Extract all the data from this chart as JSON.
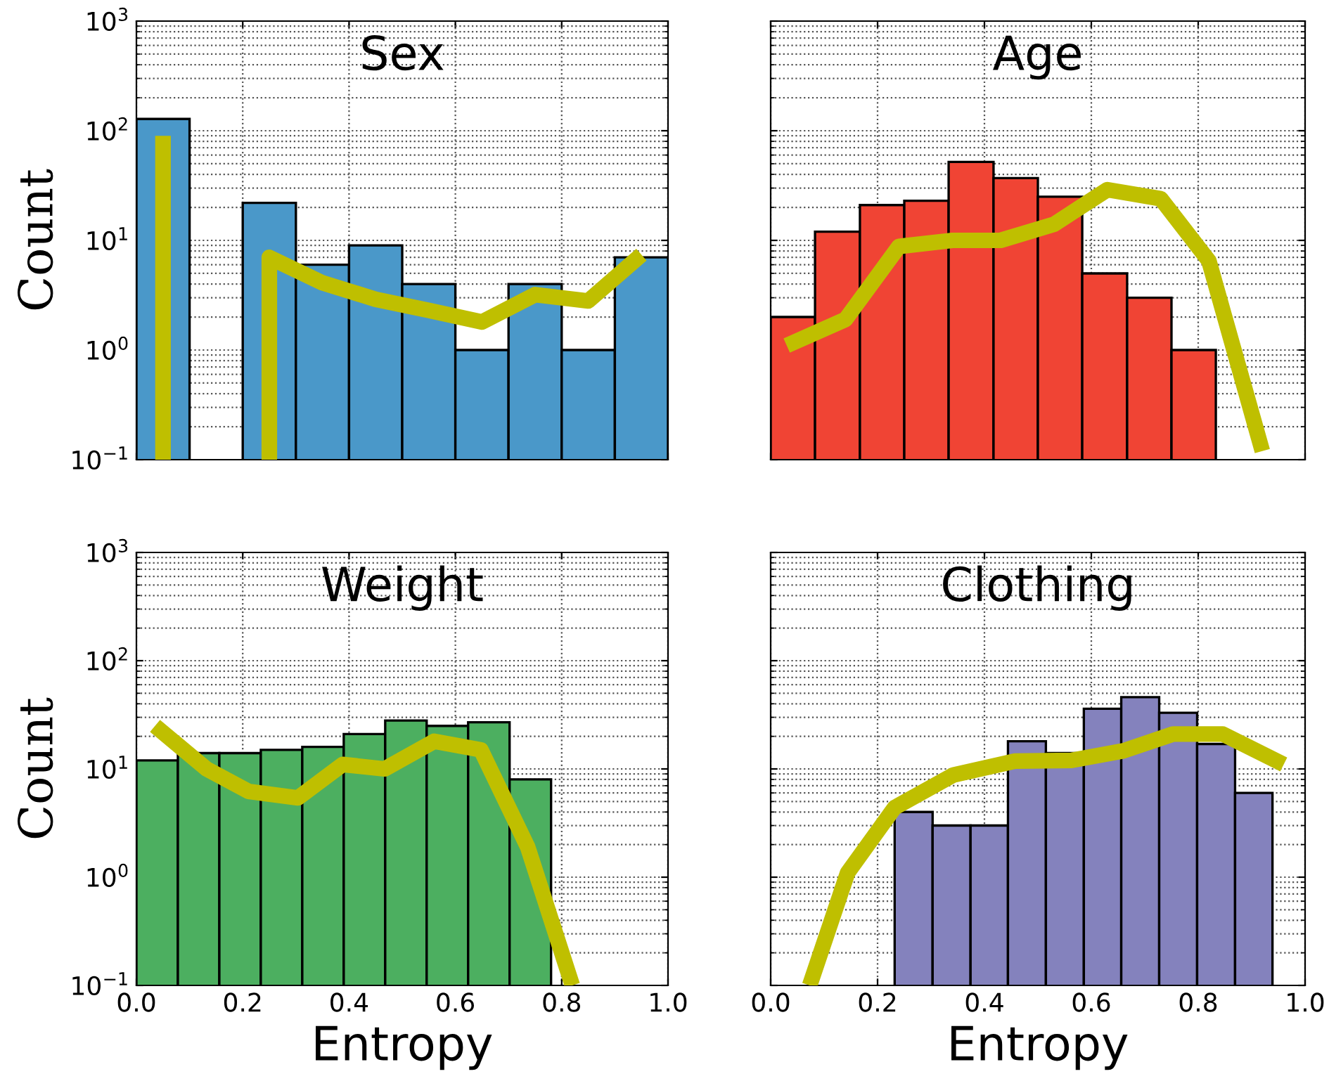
{
  "chart_data": [
    {
      "type": "histogram",
      "title": "Sex",
      "ylabel": "Count",
      "log": "y",
      "xlim": [
        0.0,
        1.0
      ],
      "ylim": [
        0.1,
        1000
      ],
      "xticks": [
        {
          "value": 0.0,
          "label": null
        },
        {
          "value": 0.2,
          "label": null
        },
        {
          "value": 0.4,
          "label": null
        },
        {
          "value": 0.6,
          "label": null
        },
        {
          "value": 0.8,
          "label": null
        },
        {
          "value": 1.0,
          "label": null
        }
      ],
      "yticks": [
        {
          "value": 0.1,
          "label": "10$^{−1}$"
        },
        {
          "value": 1,
          "label": "10$^{0}$"
        },
        {
          "value": 10,
          "label": "10$^{1}$"
        },
        {
          "value": 100,
          "label": "10$^{2}$"
        },
        {
          "value": 1000,
          "label": "10$^{3}$"
        }
      ],
      "grid": true,
      "tick_labels": "y",
      "line_style": "solid",
      "series": [
        {
          "type": "histogram",
          "color": "#4a98c9",
          "bins": [
            0.0,
            0.1,
            0.2,
            0.3,
            0.4,
            0.5,
            0.6,
            0.7,
            0.8,
            0.9,
            1.0
          ],
          "values": [
            128,
            null,
            22,
            6,
            9,
            4,
            1,
            4,
            1,
            7
          ]
        },
        {
          "type": "line",
          "color": "#bfbf00",
          "x": [
            0.05,
            0.05,
            0.15,
            0.25,
            0.25,
            0.35,
            0.45,
            0.55,
            0.65,
            0.75,
            0.85,
            0.95
          ],
          "values": [
            0.1,
            90,
            null,
            0.1,
            7,
            4.1,
            2.9,
            2.3,
            1.8,
            3.2,
            2.8,
            7.4
          ]
        }
      ]
    },
    {
      "type": "histogram",
      "title": "Age",
      "log": "y",
      "xlim": [
        0.0,
        1.0
      ],
      "ylim": [
        0.1,
        1000
      ],
      "xticks": [
        {
          "value": 0.0,
          "label": null
        },
        {
          "value": 0.2,
          "label": null
        },
        {
          "value": 0.4,
          "label": null
        },
        {
          "value": 0.6,
          "label": null
        },
        {
          "value": 0.8,
          "label": null
        },
        {
          "value": 1.0,
          "label": null
        }
      ],
      "yticks": [
        {
          "value": 0.1,
          "label": null
        },
        {
          "value": 1,
          "label": null
        },
        {
          "value": 10,
          "label": null
        },
        {
          "value": 100,
          "label": null
        },
        {
          "value": 1000,
          "label": null
        }
      ],
      "grid": true,
      "tick_labels": false,
      "line_style": "solid",
      "series": [
        {
          "type": "histogram",
          "color": "#f04434",
          "bins": [
            0.0,
            0.083,
            0.167,
            0.25,
            0.333,
            0.417,
            0.5,
            0.583,
            0.667,
            0.75,
            0.833
          ],
          "values": [
            2,
            12,
            21,
            23,
            52,
            37,
            25,
            5,
            3,
            1
          ]
        },
        {
          "type": "line",
          "color": "#bfbf00",
          "x": [
            0.03,
            0.14,
            0.24,
            0.34,
            0.43,
            0.53,
            0.63,
            0.73,
            0.82,
            0.92
          ],
          "values": [
            1.1,
            1.9,
            8.8,
            10,
            10,
            14,
            29,
            24,
            6.5,
            0.12
          ]
        }
      ]
    },
    {
      "type": "histogram",
      "title": "Weight",
      "xlabel": "Entropy",
      "ylabel": "Count",
      "log": "y",
      "xlim": [
        0.0,
        1.0
      ],
      "ylim": [
        0.1,
        1000
      ],
      "xticks": [
        {
          "value": 0.0,
          "label": "0.0"
        },
        {
          "value": 0.2,
          "label": "0.2"
        },
        {
          "value": 0.4,
          "label": "0.4"
        },
        {
          "value": 0.6,
          "label": "0.6"
        },
        {
          "value": 0.8,
          "label": "0.8"
        },
        {
          "value": 1.0,
          "label": "1.0"
        }
      ],
      "yticks": [
        {
          "value": 0.1,
          "label": "10$^{−1}$"
        },
        {
          "value": 1,
          "label": "10$^{0}$"
        },
        {
          "value": 10,
          "label": "10$^{1}$"
        },
        {
          "value": 100,
          "label": "10$^{2}$"
        },
        {
          "value": 1000,
          "label": "10$^{3}$"
        }
      ],
      "grid": true,
      "line_style": "solid",
      "series": [
        {
          "type": "histogram",
          "color": "#4caf60",
          "bins": [
            0.0,
            0.078,
            0.156,
            0.234,
            0.312,
            0.39,
            0.468,
            0.546,
            0.624,
            0.702,
            0.78
          ],
          "values": [
            12,
            14,
            14,
            15,
            16,
            21,
            28,
            25,
            27,
            8
          ]
        },
        {
          "type": "line",
          "color": "#bfbf00",
          "x": [
            0.035,
            0.132,
            0.211,
            0.304,
            0.388,
            0.467,
            0.56,
            0.648,
            0.736,
            0.82
          ],
          "values": [
            25,
            10,
            6.2,
            5.4,
            11,
            10,
            18,
            15,
            1.9,
            0.1
          ]
        }
      ]
    },
    {
      "type": "histogram",
      "title": "Clothing",
      "xlabel": "Entropy",
      "log": "y",
      "xlim": [
        0.0,
        1.0
      ],
      "ylim": [
        0.1,
        1000
      ],
      "xticks": [
        {
          "value": 0.0,
          "label": "0.0"
        },
        {
          "value": 0.2,
          "label": "0.2"
        },
        {
          "value": 0.4,
          "label": "0.4"
        },
        {
          "value": 0.6,
          "label": "0.6"
        },
        {
          "value": 0.8,
          "label": "0.8"
        },
        {
          "value": 1.0,
          "label": "1.0"
        }
      ],
      "yticks": [
        {
          "value": 0.1,
          "label": null
        },
        {
          "value": 1,
          "label": null
        },
        {
          "value": 10,
          "label": null
        },
        {
          "value": 100,
          "label": null
        },
        {
          "value": 1000,
          "label": null
        }
      ],
      "grid": true,
      "tick_labels": "x",
      "line_style": "solid",
      "series": [
        {
          "type": "histogram",
          "color": "#8482bd",
          "bins": [
            0.232,
            0.303,
            0.374,
            0.444,
            0.515,
            0.586,
            0.656,
            0.727,
            0.798,
            0.869,
            0.939
          ],
          "values": [
            4,
            3,
            3,
            18,
            14,
            36,
            46,
            33,
            17,
            6
          ]
        },
        {
          "type": "line",
          "color": "#bfbf00",
          "x": [
            0.073,
            0.144,
            0.232,
            0.342,
            0.457,
            0.563,
            0.66,
            0.753,
            0.846,
            0.96
          ],
          "values": [
            0.1,
            1.1,
            4.4,
            8.8,
            11.8,
            12,
            14.7,
            21,
            21,
            11
          ]
        }
      ]
    }
  ]
}
